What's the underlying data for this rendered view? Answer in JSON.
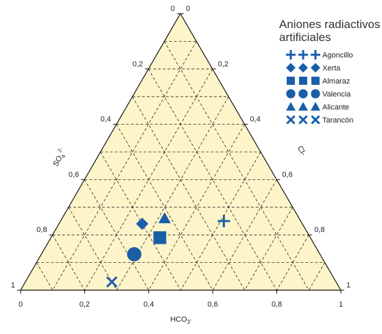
{
  "chart_data": {
    "type": "ternary-scatter",
    "axes": {
      "bottom": {
        "label": "HCO3-",
        "label_main": "HCO",
        "label_sub": "3",
        "label_sup": "-",
        "ticks": [
          "0",
          "0,2",
          "0,4",
          "0,6",
          "0,8",
          "1"
        ]
      },
      "left": {
        "label": "SO4 2-",
        "label_main": "SO",
        "label_sub": "4",
        "label_sup": "2-",
        "ticks": [
          "0",
          "0,2",
          "0,4",
          "0,6",
          "0,8",
          "1"
        ]
      },
      "right": {
        "label": "Cl-",
        "label_main": "Cl-",
        "ticks": [
          "1",
          "0,8",
          "0,6",
          "0,4",
          "0,2",
          "0"
        ]
      }
    },
    "grid": true,
    "grid_step": 0.1,
    "legend": {
      "title_line1": "Aniones radiactivos",
      "title_line2": "artificiales",
      "placement": "top-right"
    },
    "series": [
      {
        "name": "Agoncillo",
        "marker": "plus",
        "point": {
          "hco3": 0.51,
          "so4": 0.24,
          "cl": 0.25
        }
      },
      {
        "name": "Xerta",
        "marker": "diamond",
        "point": {
          "hco3": 0.26,
          "so4": 0.5,
          "cl": 0.24
        }
      },
      {
        "name": "Almaraz",
        "marker": "square",
        "point": {
          "hco3": 0.34,
          "so4": 0.47,
          "cl": 0.19
        }
      },
      {
        "name": "Valencia",
        "marker": "circle",
        "point": {
          "hco3": 0.29,
          "so4": 0.58,
          "cl": 0.13
        }
      },
      {
        "name": "Alicante",
        "marker": "triangle",
        "point": {
          "hco3": 0.32,
          "so4": 0.42,
          "cl": 0.26
        }
      },
      {
        "name": "Tarancón",
        "marker": "cross",
        "point": {
          "hco3": 0.27,
          "so4": 0.7,
          "cl": 0.03
        }
      }
    ],
    "colors": {
      "fill": "#fdf5c9",
      "marker": "#1a5ea8",
      "outline": "#111111",
      "grid": "#222222"
    }
  }
}
